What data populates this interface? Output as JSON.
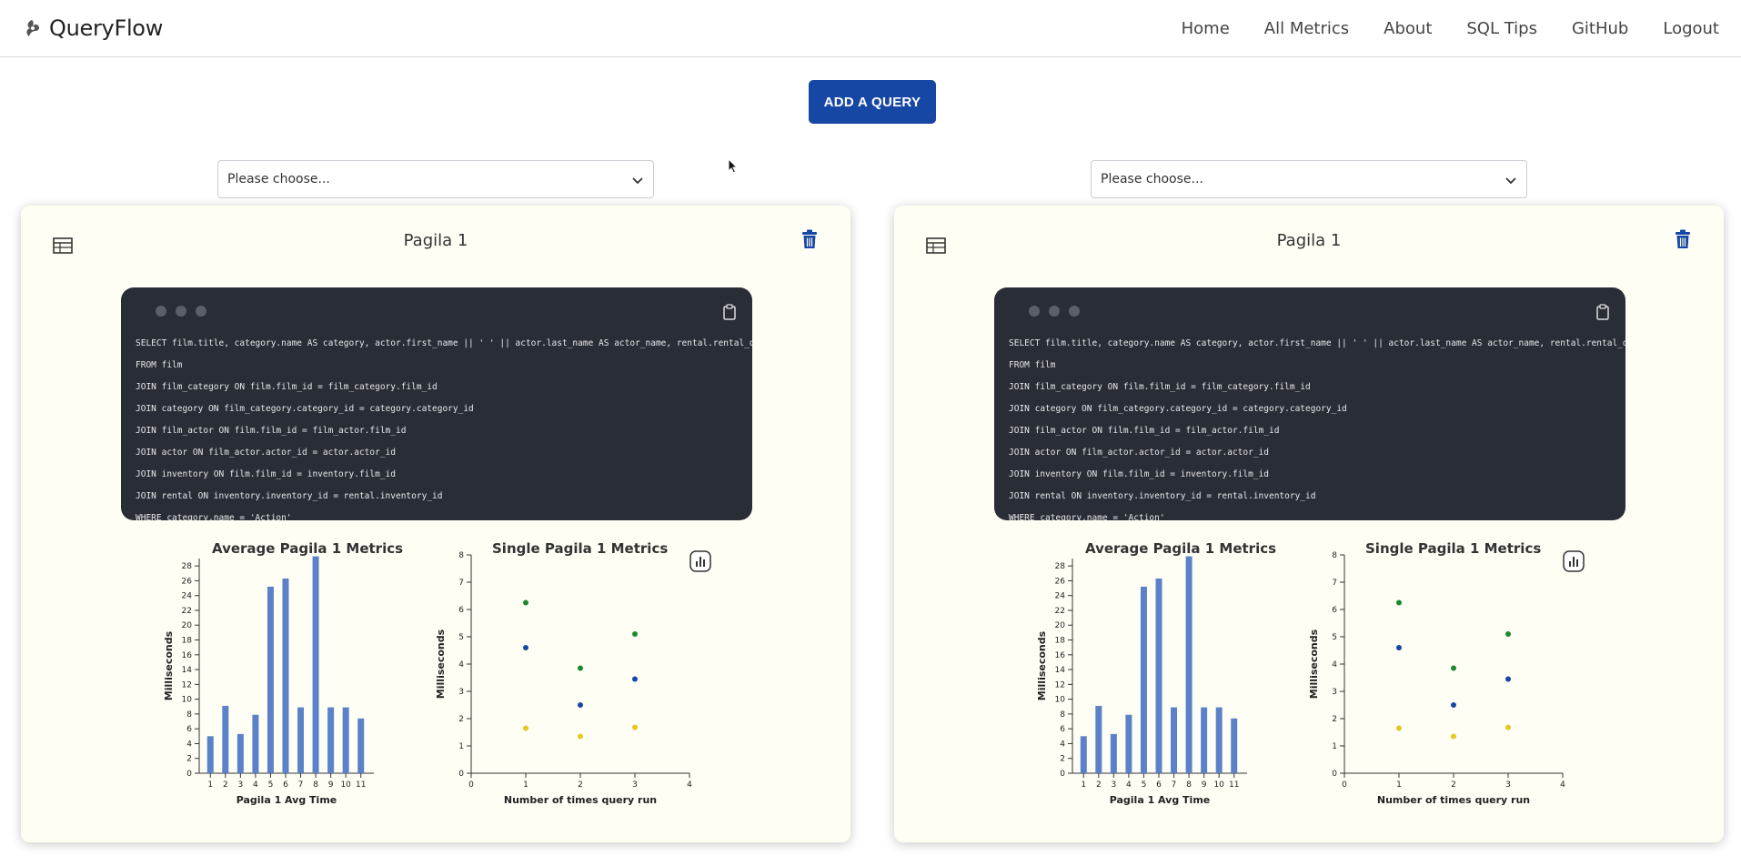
{
  "app": {
    "brand": "QueryFlow"
  },
  "nav": [
    {
      "label": "Home",
      "name": "nav-home"
    },
    {
      "label": "All Metrics",
      "name": "nav-all-metrics"
    },
    {
      "label": "About",
      "name": "nav-about"
    },
    {
      "label": "SQL Tips",
      "name": "nav-sql-tips"
    },
    {
      "label": "GitHub",
      "name": "nav-github"
    },
    {
      "label": "Logout",
      "name": "nav-logout"
    }
  ],
  "add_button": "ADD A QUERY",
  "selects": [
    {
      "value": "Please choose..."
    },
    {
      "value": "Please choose..."
    }
  ],
  "colors": {
    "accent": "#1747a4",
    "bar": "#5b82c8",
    "green": "#1b8a2a",
    "blue": "#1747a4",
    "yellow": "#e6c823",
    "code_bg": "#282d36",
    "card_bg": "#fffef5"
  },
  "icons": [
    "table-icon",
    "trash-icon",
    "clipboard-icon",
    "bar-chart-icon",
    "chevron-down-icon"
  ],
  "cards": [
    {
      "title": "Pagila 1",
      "code_lines": [
        "SELECT film.title, category.name AS category, actor.first_name || ' ' || actor.last_name AS actor_name, rental.rental_date",
        "FROM film",
        "JOIN film_category ON film.film_id = film_category.film_id",
        "JOIN category ON film_category.category_id = category.category_id",
        "JOIN film_actor ON film.film_id = film_actor.film_id",
        "JOIN actor ON film_actor.actor_id = actor.actor_id",
        "JOIN inventory ON film.film_id = inventory.film_id",
        "JOIN rental ON inventory.inventory_id = rental.inventory_id",
        "WHERE category.name = 'Action'"
      ]
    },
    {
      "title": "Pagila 1",
      "code_lines": [
        "SELECT film.title, category.name AS category, actor.first_name || ' ' || actor.last_name AS actor_name, rental.rental_date",
        "FROM film",
        "JOIN film_category ON film.film_id = film_category.film_id",
        "JOIN category ON film_category.category_id = category.category_id",
        "JOIN film_actor ON film.film_id = film_actor.film_id",
        "JOIN actor ON film_actor.actor_id = actor.actor_id",
        "JOIN inventory ON film.film_id = inventory.film_id",
        "JOIN rental ON inventory.inventory_id = rental.inventory_id",
        "WHERE category.name = 'Action'"
      ]
    }
  ],
  "chart_data": [
    {
      "type": "bar",
      "title": "Average Pagila 1 Metrics",
      "xlabel": "Pagila 1 Avg Time",
      "ylabel": "Milliseconds",
      "categories": [
        "1",
        "2",
        "3",
        "4",
        "5",
        "6",
        "7",
        "8",
        "9",
        "10",
        "11"
      ],
      "values": [
        5.0,
        9.1,
        5.3,
        7.9,
        25.2,
        26.3,
        8.9,
        29.3,
        8.9,
        8.9,
        7.4
      ],
      "ylim": [
        0,
        29
      ],
      "yticks": [
        0,
        2,
        4,
        6,
        8,
        10,
        12,
        14,
        16,
        18,
        20,
        22,
        24,
        26,
        28
      ]
    },
    {
      "type": "scatter",
      "title": "Single Pagila 1 Metrics",
      "xlabel": "Number of times query run",
      "ylabel": "Milliseconds",
      "xlim": [
        0,
        4
      ],
      "ylim": [
        0,
        8
      ],
      "xticks": [
        0,
        1,
        2,
        3,
        4
      ],
      "yticks": [
        0,
        1,
        2,
        3,
        4,
        5,
        6,
        7,
        8
      ],
      "series": [
        {
          "color": "#1b8a2a",
          "points": [
            [
              1,
              6.25
            ],
            [
              2,
              3.85
            ],
            [
              3,
              5.1
            ]
          ]
        },
        {
          "color": "#1747a4",
          "points": [
            [
              1,
              4.6
            ],
            [
              2,
              2.5
            ],
            [
              3,
              3.45
            ]
          ]
        },
        {
          "color": "#e6c823",
          "points": [
            [
              1,
              1.65
            ],
            [
              2,
              1.35
            ],
            [
              3,
              1.68
            ]
          ]
        }
      ]
    }
  ]
}
